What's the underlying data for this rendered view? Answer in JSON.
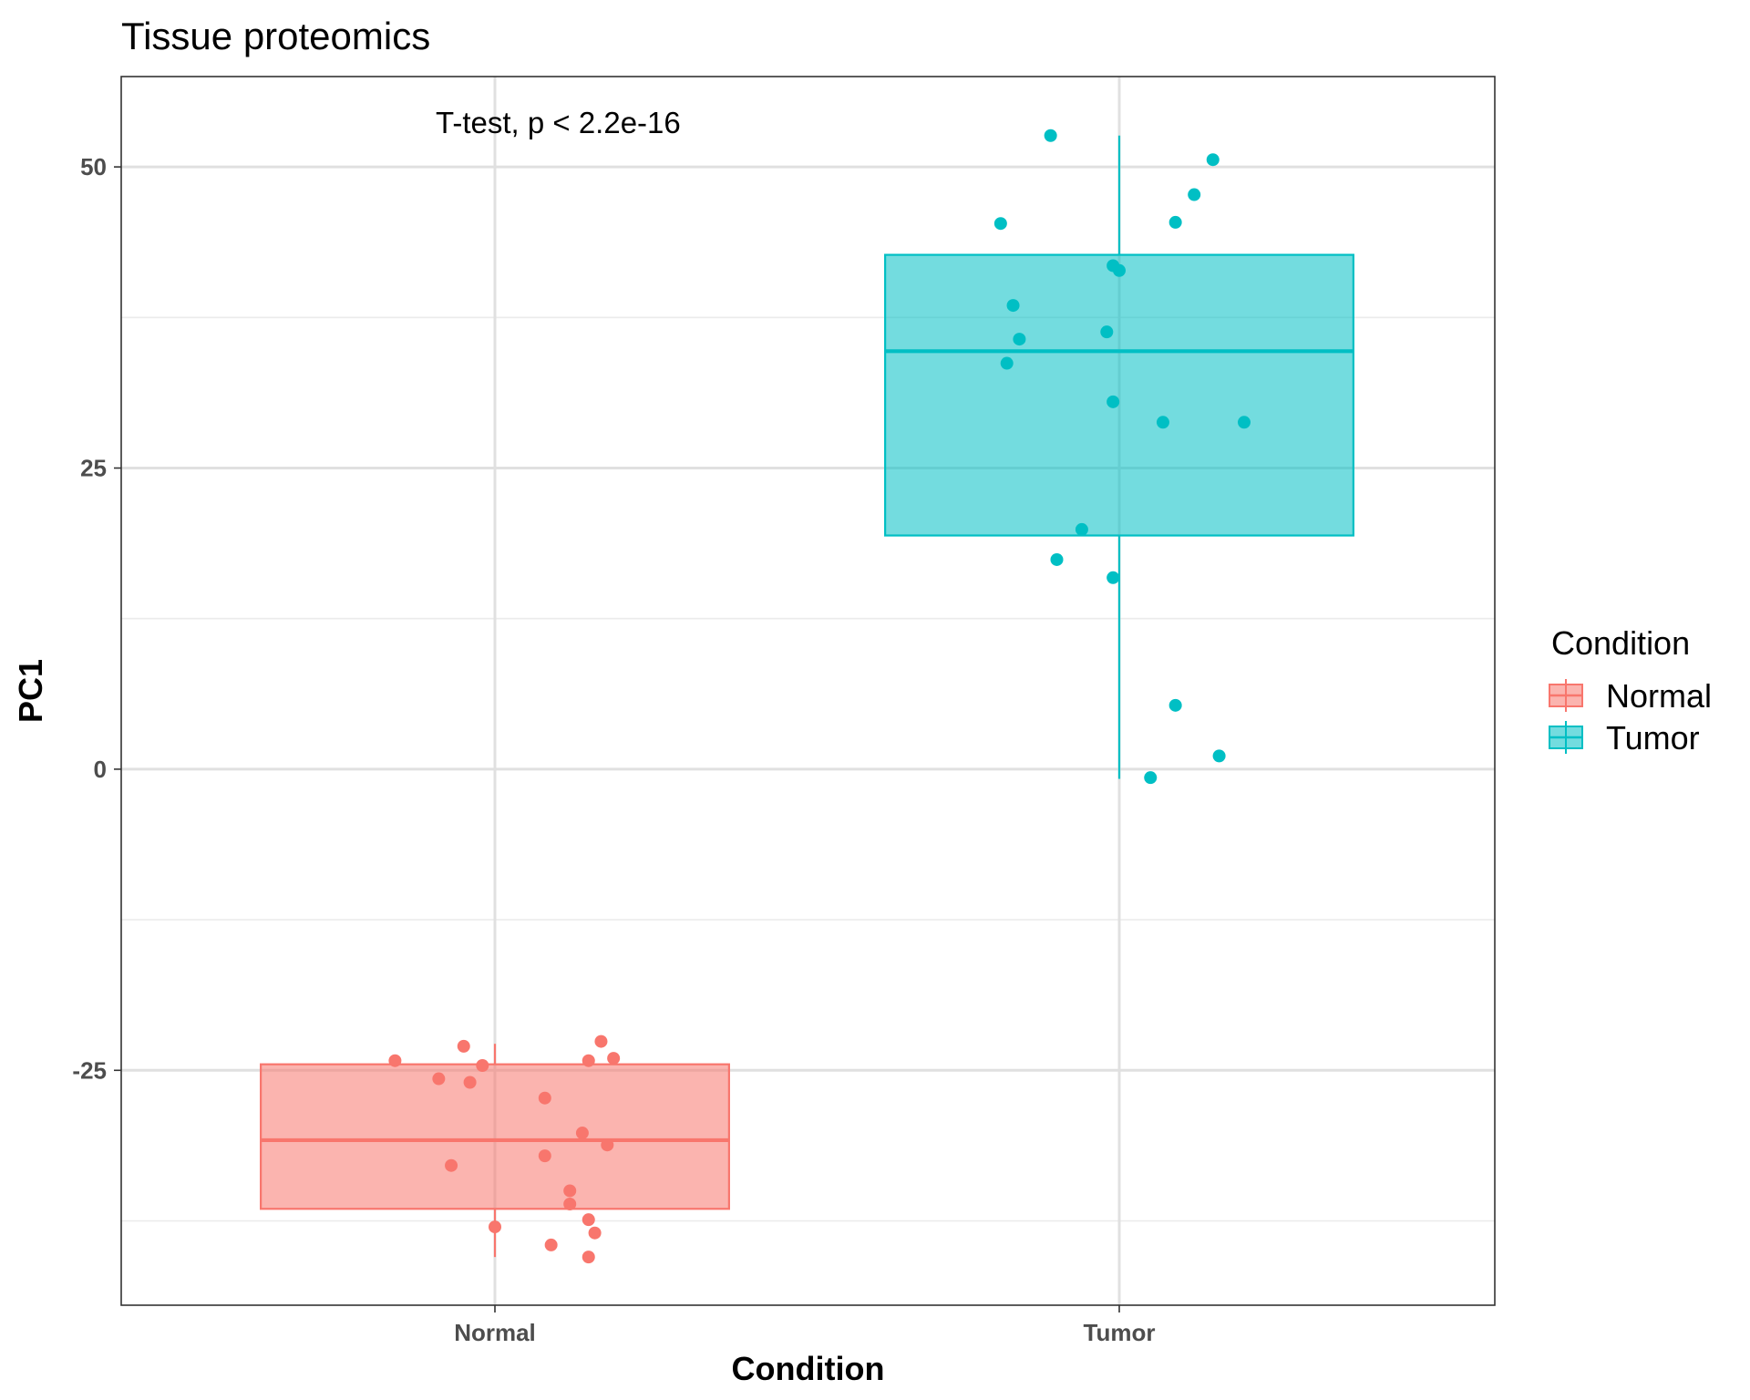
{
  "chart_data": {
    "type": "boxplot",
    "title": "Tissue proteomics",
    "xlabel": "Condition",
    "ylabel": "PC1",
    "categories": [
      "Normal",
      "Tumor"
    ],
    "ylim": [
      -44.5,
      57.5
    ],
    "yticks": [
      -25,
      0,
      25,
      50
    ],
    "grid": true,
    "annotation": "T-test, p < 2.2e-16",
    "legend": {
      "title": "Condition",
      "position": "right",
      "entries": [
        "Normal",
        "Tumor"
      ]
    },
    "colors": {
      "Normal": "#F8766D",
      "Tumor": "#00BFC4"
    },
    "boxes": [
      {
        "category": "Normal",
        "whisker_low": -40.5,
        "q1": -36.5,
        "median": -30.8,
        "q3": -24.5,
        "whisker_high": -22.8
      },
      {
        "category": "Tumor",
        "whisker_low": -0.8,
        "q1": 19.4,
        "median": 34.7,
        "q3": 42.7,
        "whisker_high": 52.6
      }
    ],
    "points": [
      {
        "category": "Normal",
        "jitter": -0.16,
        "y": -24.2
      },
      {
        "category": "Normal",
        "jitter": -0.05,
        "y": -23.0
      },
      {
        "category": "Normal",
        "jitter": -0.02,
        "y": -24.6
      },
      {
        "category": "Normal",
        "jitter": -0.09,
        "y": -25.7
      },
      {
        "category": "Normal",
        "jitter": -0.04,
        "y": -26.0
      },
      {
        "category": "Normal",
        "jitter": 0.17,
        "y": -22.6
      },
      {
        "category": "Normal",
        "jitter": 0.15,
        "y": -24.2
      },
      {
        "category": "Normal",
        "jitter": 0.19,
        "y": -24.0
      },
      {
        "category": "Normal",
        "jitter": 0.08,
        "y": -27.3
      },
      {
        "category": "Normal",
        "jitter": 0.14,
        "y": -30.2
      },
      {
        "category": "Normal",
        "jitter": 0.18,
        "y": -31.2
      },
      {
        "category": "Normal",
        "jitter": -0.07,
        "y": -32.9
      },
      {
        "category": "Normal",
        "jitter": 0.08,
        "y": -32.1
      },
      {
        "category": "Normal",
        "jitter": 0.12,
        "y": -35.0
      },
      {
        "category": "Normal",
        "jitter": 0.12,
        "y": -36.1
      },
      {
        "category": "Normal",
        "jitter": 0.15,
        "y": -37.4
      },
      {
        "category": "Normal",
        "jitter": 0.16,
        "y": -38.5
      },
      {
        "category": "Normal",
        "jitter": 0.0,
        "y": -38.0
      },
      {
        "category": "Normal",
        "jitter": 0.09,
        "y": -39.5
      },
      {
        "category": "Normal",
        "jitter": 0.15,
        "y": -40.5
      },
      {
        "category": "Tumor",
        "jitter": -0.11,
        "y": 52.6
      },
      {
        "category": "Tumor",
        "jitter": 0.15,
        "y": 50.6
      },
      {
        "category": "Tumor",
        "jitter": 0.12,
        "y": 47.7
      },
      {
        "category": "Tumor",
        "jitter": -0.19,
        "y": 45.3
      },
      {
        "category": "Tumor",
        "jitter": 0.09,
        "y": 45.4
      },
      {
        "category": "Tumor",
        "jitter": -0.01,
        "y": 41.8
      },
      {
        "category": "Tumor",
        "jitter": 0.0,
        "y": 41.4
      },
      {
        "category": "Tumor",
        "jitter": -0.17,
        "y": 38.5
      },
      {
        "category": "Tumor",
        "jitter": -0.16,
        "y": 35.7
      },
      {
        "category": "Tumor",
        "jitter": -0.02,
        "y": 36.3
      },
      {
        "category": "Tumor",
        "jitter": -0.18,
        "y": 33.7
      },
      {
        "category": "Tumor",
        "jitter": -0.01,
        "y": 30.5
      },
      {
        "category": "Tumor",
        "jitter": 0.07,
        "y": 28.8
      },
      {
        "category": "Tumor",
        "jitter": 0.2,
        "y": 28.8
      },
      {
        "category": "Tumor",
        "jitter": -0.06,
        "y": 19.9
      },
      {
        "category": "Tumor",
        "jitter": -0.1,
        "y": 17.4
      },
      {
        "category": "Tumor",
        "jitter": -0.01,
        "y": 15.9
      },
      {
        "category": "Tumor",
        "jitter": 0.09,
        "y": 5.3
      },
      {
        "category": "Tumor",
        "jitter": 0.16,
        "y": 1.1
      },
      {
        "category": "Tumor",
        "jitter": 0.05,
        "y": -0.7
      }
    ]
  }
}
